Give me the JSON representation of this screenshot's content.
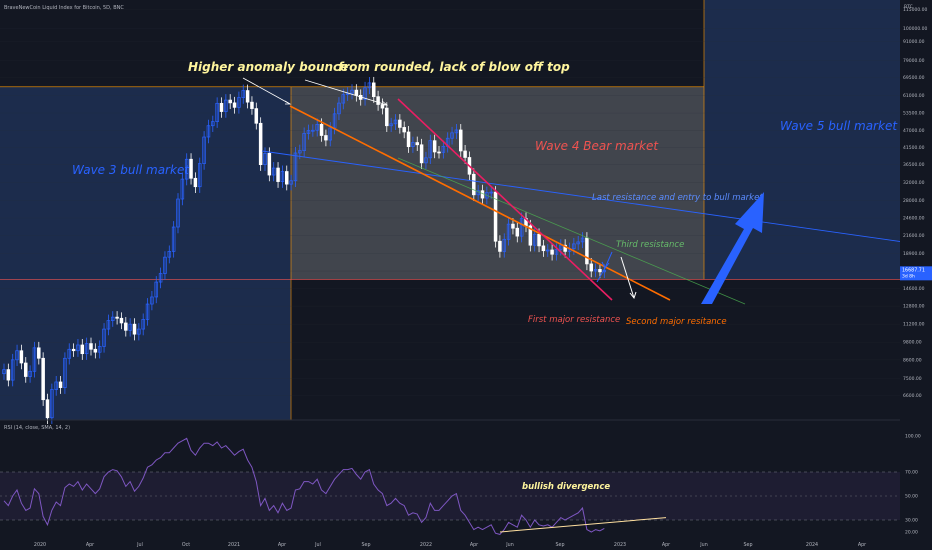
{
  "header": {
    "title": "BraveNewCoin Liquid Index for Bitcoin, 5D, BNC"
  },
  "colors": {
    "background": "#131722",
    "wave3_zone": "#1c2c4c",
    "wave4_zone": "#4a4d55",
    "wave5_zone": "#1c2c4c",
    "up_candle": "#2962ff",
    "down_candle": "#ffffff",
    "pink_line": "#e91e63",
    "orange_line": "#ff6d00",
    "blue_line": "#2962ff",
    "green_line": "#4caf50",
    "rsi_line": "#7e57c2",
    "divergence_line": "#ffe0a0",
    "label_red": "#ef5350",
    "label_blue": "#2962ff",
    "label_yellow": "#fff59d",
    "label_green": "#66bb6a"
  },
  "annotations": {
    "higher_anomaly": "Higher anomaly bounce",
    "rounded_top": "from rounded, lack of blow off top",
    "wave3": "Wave 3 bull market",
    "wave4": "Wave 4 Bear market",
    "wave5": "Wave 5 bull market",
    "last_resistance": "Last resistance and entry to bull market",
    "third_resistance": "Third resistance",
    "first_major": "First major resistance",
    "second_major": "Second  major resitance",
    "bullish_divergence": "bullish divergence"
  },
  "chart_data": [
    {
      "type": "candlestick",
      "title": "BraveNewCoin Liquid Index for Bitcoin, 5D, BNC",
      "y_axis_unit": "BTC",
      "y_scale": "log",
      "yticks": [
        "115000.00",
        "100000.00",
        "91000.00",
        "79000.00",
        "69500.00",
        "61000.00",
        "53500.00",
        "47000.00",
        "41500.00",
        "36500.00",
        "32000.00",
        "28000.00",
        "24600.00",
        "21600.00",
        "18900.00",
        "16600.00",
        "14600.00",
        "12800.00",
        "11200.00",
        "9800.00",
        "8600.00",
        "7500.00",
        "6600.00"
      ],
      "yticks_values": [
        115000,
        100000,
        91000,
        79000,
        69500,
        61000,
        53500,
        47000,
        41500,
        36500,
        32000,
        28000,
        24600,
        21600,
        18900,
        16600,
        14600,
        12800,
        11200,
        9800,
        8600,
        7500,
        6600
      ],
      "last_price_label": "16687.71",
      "countdown_label": "3d 8h",
      "x_labels": [
        "2020",
        "Apr",
        "Jul",
        "Oct",
        "2021",
        "Apr",
        "Jul",
        "Sep",
        "2022",
        "Apr",
        "Jun",
        "Sep",
        "2023",
        "Apr",
        "Jun",
        "Sep",
        "2024",
        "Apr"
      ],
      "zones": [
        {
          "label": "Wave 3 bull market",
          "price_top": 65000,
          "price_bottom": 6000
        },
        {
          "label": "Wave 4 Bear market",
          "price_top": 65000,
          "price_bottom": 15600
        },
        {
          "label": "Wave 5 bull market",
          "price_top": 120000,
          "price_bottom": 15600
        }
      ],
      "price_path": [
        8000,
        7400,
        8600,
        9200,
        8400,
        7600,
        7900,
        9400,
        8700,
        6400,
        5600,
        6900,
        7300,
        7000,
        8700,
        9300,
        9200,
        9600,
        9000,
        9700,
        9300,
        9100,
        9500,
        10800,
        11500,
        11800,
        11700,
        11300,
        10700,
        11200,
        10400,
        10800,
        11600,
        13000,
        13700,
        15300,
        16300,
        18400,
        19200,
        23000,
        28300,
        32800,
        38000,
        33000,
        31000,
        36800,
        44800,
        48700,
        50200,
        57500,
        54100,
        58900,
        57700,
        55800,
        60000,
        63200,
        58000,
        55300,
        49600,
        36500,
        39700,
        33800,
        35600,
        32200,
        34700,
        31600,
        32400,
        39800,
        40500,
        46000,
        47000,
        47100,
        49200,
        45300,
        43800,
        47900,
        53200,
        57600,
        61300,
        62000,
        63400,
        61000,
        59200,
        64500,
        66900,
        60400,
        57000,
        55500,
        48700,
        49400,
        50800,
        48100,
        46500,
        41700,
        43000,
        42300,
        37000,
        38400,
        43600,
        40100,
        40000,
        41800,
        44400,
        46200,
        47200,
        40400,
        38500,
        34000,
        29200,
        30100,
        28500,
        29700,
        29800,
        20700,
        19200,
        21000,
        23500,
        22800,
        21500,
        24500,
        23200,
        20100,
        21800,
        20000,
        19300,
        19400,
        18800,
        19500,
        20100,
        19200,
        19600,
        20300,
        20600,
        21200,
        17500,
        16600,
        16800,
        16500,
        16700
      ],
      "lines": [
        {
          "name": "First major resistance",
          "color": "pink"
        },
        {
          "name": "Second  major resitance",
          "color": "orange"
        },
        {
          "name": "Third resistance",
          "color": "green"
        },
        {
          "name": "Last resistance and entry to bull market",
          "color": "blue"
        }
      ]
    },
    {
      "type": "line",
      "title": "RSI (14, close, SMA, 14, 2)",
      "yticks": [
        "100.00",
        "70.00",
        "50.00",
        "30.00",
        "20.00"
      ],
      "yticks_values": [
        100,
        70,
        50,
        30,
        20
      ],
      "bands": [
        30,
        70
      ],
      "values": [
        46,
        42,
        50,
        55,
        44,
        38,
        40,
        56,
        52,
        33,
        26,
        38,
        45,
        42,
        57,
        60,
        58,
        62,
        55,
        60,
        56,
        52,
        56,
        66,
        70,
        72,
        71,
        66,
        58,
        62,
        54,
        58,
        65,
        74,
        76,
        80,
        82,
        86,
        86,
        90,
        94,
        96,
        98,
        88,
        84,
        90,
        94,
        94,
        92,
        95,
        90,
        92,
        88,
        84,
        87,
        89,
        80,
        74,
        62,
        42,
        48,
        38,
        42,
        36,
        44,
        38,
        40,
        55,
        56,
        62,
        62,
        60,
        64,
        55,
        52,
        58,
        64,
        68,
        72,
        72,
        73,
        68,
        64,
        70,
        72,
        60,
        55,
        52,
        42,
        44,
        48,
        44,
        42,
        34,
        36,
        35,
        28,
        32,
        44,
        38,
        38,
        42,
        46,
        50,
        52,
        38,
        34,
        28,
        22,
        24,
        22,
        24,
        26,
        19,
        18,
        22,
        28,
        26,
        24,
        34,
        30,
        24,
        30,
        26,
        25,
        26,
        24,
        28,
        32,
        30,
        32,
        34,
        36,
        40,
        22,
        20,
        22,
        21,
        23
      ],
      "annotation": "bullish divergence"
    }
  ]
}
